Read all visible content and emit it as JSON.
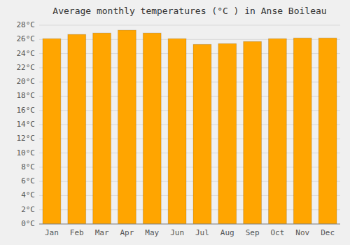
{
  "chart_data": {
    "type": "bar",
    "title": "Average monthly temperatures (°C ) in Anse Boileau",
    "categories": [
      "Jan",
      "Feb",
      "Mar",
      "Apr",
      "May",
      "Jun",
      "Jul",
      "Aug",
      "Sep",
      "Oct",
      "Nov",
      "Dec"
    ],
    "values": [
      26.1,
      26.7,
      26.9,
      27.3,
      26.9,
      26.1,
      25.3,
      25.4,
      25.7,
      26.1,
      26.2,
      26.2
    ],
    "color": "#FFA500",
    "ylim": [
      0,
      28
    ],
    "yticks": [
      {
        "value": 0,
        "label": "0°C"
      },
      {
        "value": 2,
        "label": "2°C"
      },
      {
        "value": 4,
        "label": "4°C"
      },
      {
        "value": 6,
        "label": "6°C"
      },
      {
        "value": 8,
        "label": "8°C"
      },
      {
        "value": 10,
        "label": "10°C"
      },
      {
        "value": 12,
        "label": "12°C"
      },
      {
        "value": 14,
        "label": "14°C"
      },
      {
        "value": 16,
        "label": "16°C"
      },
      {
        "value": 18,
        "label": "18°C"
      },
      {
        "value": 20,
        "label": "20°C"
      },
      {
        "value": 22,
        "label": "22°C"
      },
      {
        "value": 24,
        "label": "24°C"
      },
      {
        "value": 26,
        "label": "26°C"
      },
      {
        "value": 28,
        "label": "28°C"
      }
    ],
    "grid": true
  }
}
